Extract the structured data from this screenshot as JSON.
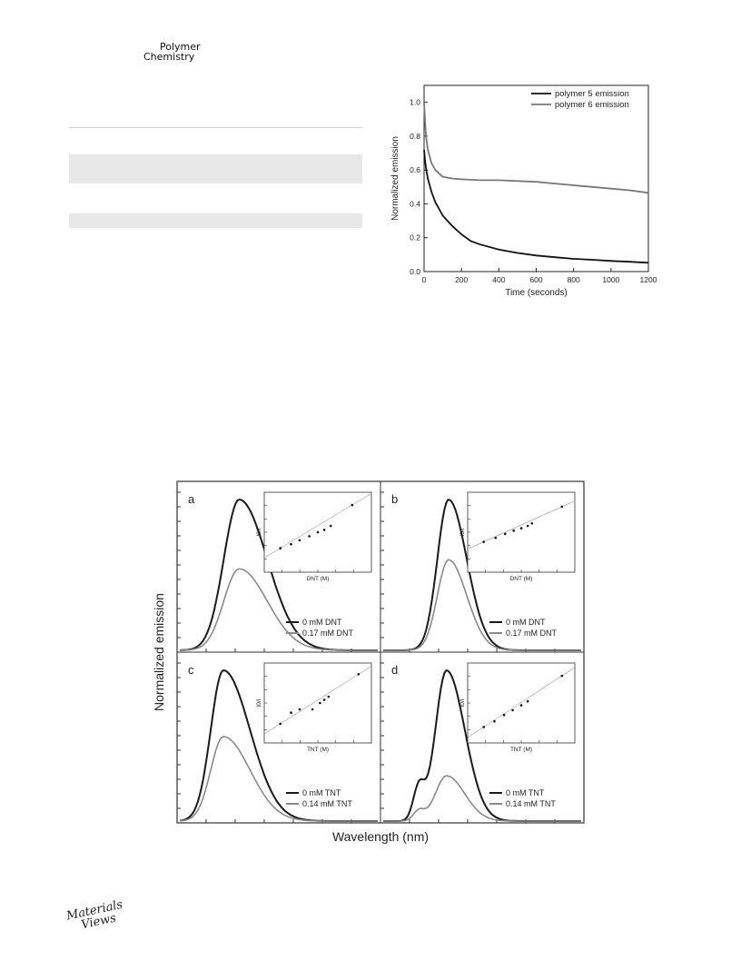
{
  "header": {
    "journal_line1": "Polymer",
    "journal_line2": "Chemistry"
  },
  "footer": {
    "logo_line1": "Materials",
    "logo_line2": "Views"
  },
  "chart_data": [
    {
      "type": "line",
      "xlabel": "Time (seconds)",
      "ylabel": "Normalized emission",
      "xlim": [
        0,
        1200
      ],
      "ylim": [
        0,
        1.1
      ],
      "xticks": [
        0,
        200,
        400,
        600,
        800,
        1000,
        1200
      ],
      "yticks": [
        0.0,
        0.2,
        0.4,
        0.6,
        0.8,
        1.0
      ],
      "legend_position": "top-right",
      "series": [
        {
          "name": "polymer 5 emission",
          "color": "#111111",
          "x": [
            0,
            5,
            10,
            20,
            40,
            60,
            80,
            100,
            150,
            200,
            250,
            300,
            400,
            500,
            600,
            700,
            800,
            900,
            1000,
            1100,
            1200
          ],
          "y": [
            0.72,
            0.66,
            0.61,
            0.55,
            0.47,
            0.41,
            0.37,
            0.33,
            0.27,
            0.22,
            0.18,
            0.16,
            0.13,
            0.11,
            0.095,
            0.085,
            0.075,
            0.07,
            0.063,
            0.058,
            0.052
          ]
        },
        {
          "name": "polymer 6 emission",
          "color": "#777777",
          "x": [
            0,
            5,
            10,
            20,
            40,
            60,
            80,
            100,
            150,
            200,
            300,
            400,
            500,
            600,
            700,
            800,
            900,
            1000,
            1100,
            1200
          ],
          "y": [
            1.0,
            0.9,
            0.8,
            0.72,
            0.64,
            0.6,
            0.58,
            0.56,
            0.55,
            0.545,
            0.54,
            0.54,
            0.535,
            0.53,
            0.52,
            0.51,
            0.5,
            0.49,
            0.48,
            0.465
          ]
        }
      ]
    },
    {
      "type": "line",
      "xlabel": "Wavelength (nm)",
      "ylabel": "Normalized emission",
      "panels": [
        {
          "label": "a",
          "legend": [
            "0 mM DNT",
            "0.17 mM DNT"
          ],
          "inset_xlabel": "DNT (M)",
          "inset_ylabel": "I0/I",
          "peak_pos": 0.3,
          "peak_height": 1.0,
          "quenched_height": 0.54,
          "width_left": 0.11,
          "width_right": 0.2,
          "shoulder": 0,
          "inset_points": [
            [
              0.15,
              0.3
            ],
            [
              0.25,
              0.35
            ],
            [
              0.33,
              0.4
            ],
            [
              0.42,
              0.45
            ],
            [
              0.5,
              0.5
            ],
            [
              0.56,
              0.53
            ],
            [
              0.62,
              0.58
            ],
            [
              0.82,
              0.84
            ]
          ]
        },
        {
          "label": "b",
          "legend": [
            "0 mM DNT",
            "0.17 mM DNT"
          ],
          "inset_xlabel": "DNT (M)",
          "inset_ylabel": "I0/I",
          "peak_pos": 0.33,
          "peak_height": 1.0,
          "quenched_height": 0.6,
          "width_left": 0.08,
          "width_right": 0.13,
          "shoulder": 0,
          "inset_points": [
            [
              0.15,
              0.38
            ],
            [
              0.26,
              0.43
            ],
            [
              0.35,
              0.48
            ],
            [
              0.43,
              0.52
            ],
            [
              0.5,
              0.55
            ],
            [
              0.56,
              0.58
            ],
            [
              0.6,
              0.61
            ],
            [
              0.88,
              0.82
            ]
          ]
        },
        {
          "label": "c",
          "legend": [
            "0 mM TNT",
            "0.14 mM TNT"
          ],
          "inset_xlabel": "TNT (M)",
          "inset_ylabel": "I0/I",
          "peak_pos": 0.22,
          "peak_height": 1.0,
          "quenched_height": 0.56,
          "width_left": 0.09,
          "width_right": 0.19,
          "shoulder": 0,
          "inset_points": [
            [
              0.15,
              0.24
            ],
            [
              0.25,
              0.38
            ],
            [
              0.33,
              0.42
            ],
            [
              0.45,
              0.42
            ],
            [
              0.52,
              0.5
            ],
            [
              0.56,
              0.54
            ],
            [
              0.6,
              0.58
            ],
            [
              0.88,
              0.86
            ]
          ]
        },
        {
          "label": "d",
          "legend": [
            "0 mM TNT",
            "0.14 mM TNT"
          ],
          "inset_xlabel": "TNT (M)",
          "inset_ylabel": "I0/I",
          "peak_pos": 0.32,
          "peak_height": 1.0,
          "quenched_height": 0.3,
          "width_left": 0.08,
          "width_right": 0.13,
          "shoulder": 0.22,
          "inset_points": [
            [
              0.15,
              0.2
            ],
            [
              0.25,
              0.27
            ],
            [
              0.34,
              0.35
            ],
            [
              0.42,
              0.41
            ],
            [
              0.5,
              0.47
            ],
            [
              0.56,
              0.52
            ],
            [
              0.88,
              0.84
            ]
          ]
        }
      ]
    }
  ]
}
